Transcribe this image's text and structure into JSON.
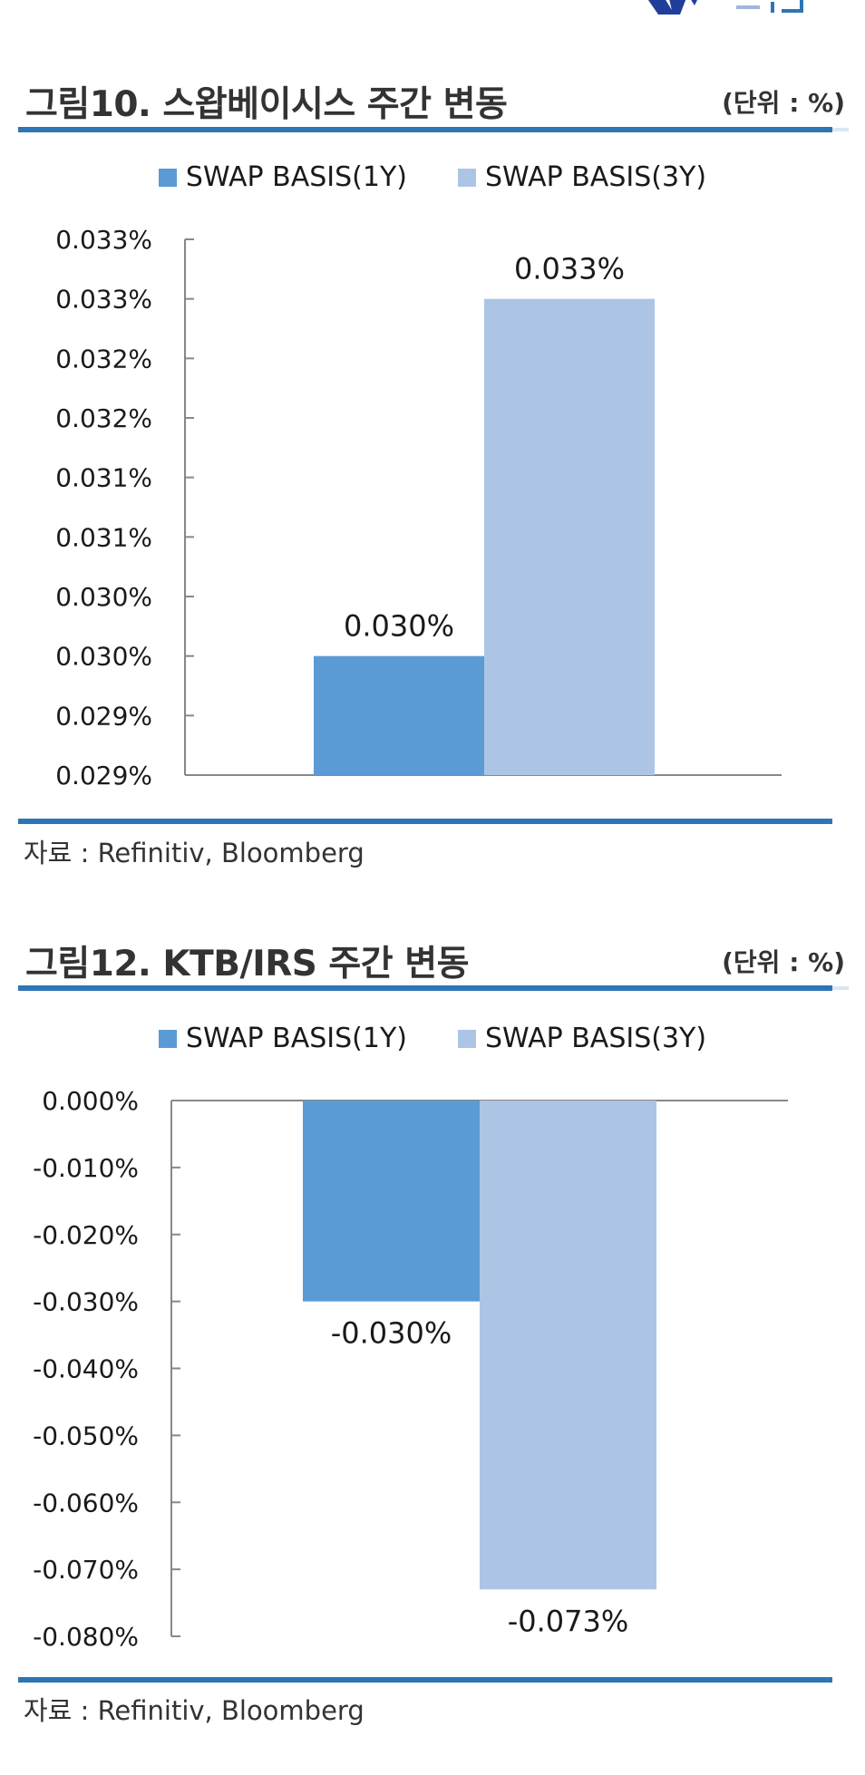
{
  "source_label": "자료 : Refinitiv, Bloomberg",
  "colors": {
    "series1": "#5b9bd5",
    "series2": "#adc5e5",
    "rule": "#2e75b6",
    "axis": "#888888"
  },
  "figures": [
    {
      "title": "그림10. 스왑베이시스 주간 변동",
      "unit": "(단위 : %)",
      "legend": [
        "SWAP BASIS(1Y)",
        "SWAP BASIS(3Y)"
      ],
      "chart_data": {
        "type": "bar",
        "categories": [
          ""
        ],
        "series": [
          {
            "name": "SWAP BASIS(1Y)",
            "values": [
              0.03
            ],
            "label": "0.030%"
          },
          {
            "name": "SWAP BASIS(3Y)",
            "values": [
              0.033
            ],
            "label": "0.033%"
          }
        ],
        "ylim": [
          0.029,
          0.0335
        ],
        "y_ticks": [
          0.0335,
          0.033,
          0.0325,
          0.032,
          0.0315,
          0.031,
          0.0305,
          0.03,
          0.0295,
          0.029
        ],
        "y_tick_labels": [
          "0.033%",
          "0.033%",
          "0.032%",
          "0.032%",
          "0.031%",
          "0.031%",
          "0.030%",
          "0.030%",
          "0.029%",
          "0.029%"
        ],
        "xlabel": "",
        "ylabel": "",
        "grid": false,
        "legend_position": "top"
      }
    },
    {
      "title": "그림12. KTB/IRS 주간 변동",
      "unit": "(단위 : %)",
      "legend": [
        "SWAP BASIS(1Y)",
        "SWAP BASIS(3Y)"
      ],
      "chart_data": {
        "type": "bar",
        "categories": [
          ""
        ],
        "series": [
          {
            "name": "SWAP BASIS(1Y)",
            "values": [
              -0.03
            ],
            "label": "-0.030%"
          },
          {
            "name": "SWAP BASIS(3Y)",
            "values": [
              -0.073
            ],
            "label": "-0.073%"
          }
        ],
        "ylim": [
          -0.08,
          0.0
        ],
        "y_ticks": [
          0.0,
          -0.01,
          -0.02,
          -0.03,
          -0.04,
          -0.05,
          -0.06,
          -0.07,
          -0.08
        ],
        "y_tick_labels": [
          "0.000%",
          "-0.010%",
          "-0.020%",
          "-0.030%",
          "-0.040%",
          "-0.050%",
          "-0.060%",
          "-0.070%",
          "-0.080%"
        ],
        "xlabel": "",
        "ylabel": "",
        "grid": false,
        "legend_position": "top"
      }
    }
  ]
}
